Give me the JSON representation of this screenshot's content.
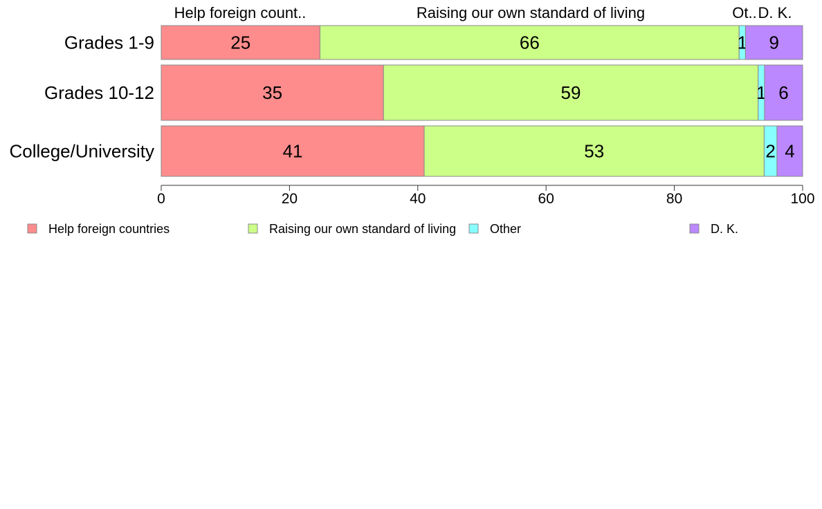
{
  "chart_data": {
    "type": "bar",
    "orientation": "horizontal",
    "stacked": true,
    "categories": [
      "Grades 1-9",
      "Grades 10-12",
      "College/University"
    ],
    "series": [
      {
        "name": "Help foreign countries",
        "values": [
          25,
          35,
          41
        ],
        "color": "#ff8c8c"
      },
      {
        "name": "Raising our own standard of living",
        "values": [
          66,
          59,
          53
        ],
        "color": "#ccff88"
      },
      {
        "name": "Other",
        "values": [
          1,
          1,
          2
        ],
        "color": "#88ffff"
      },
      {
        "name": "D. K.",
        "values": [
          9,
          6,
          4
        ],
        "color": "#bb88ff"
      }
    ],
    "top_labels": [
      "Help foreign count..",
      "Raising our own standard of living",
      "Ot..",
      "D. K."
    ],
    "xlim": [
      0,
      100
    ],
    "x_ticks": [
      0,
      20,
      40,
      60,
      80,
      100
    ],
    "legend_position": "bottom",
    "grid": false,
    "title": "",
    "xlabel": "",
    "ylabel": ""
  }
}
